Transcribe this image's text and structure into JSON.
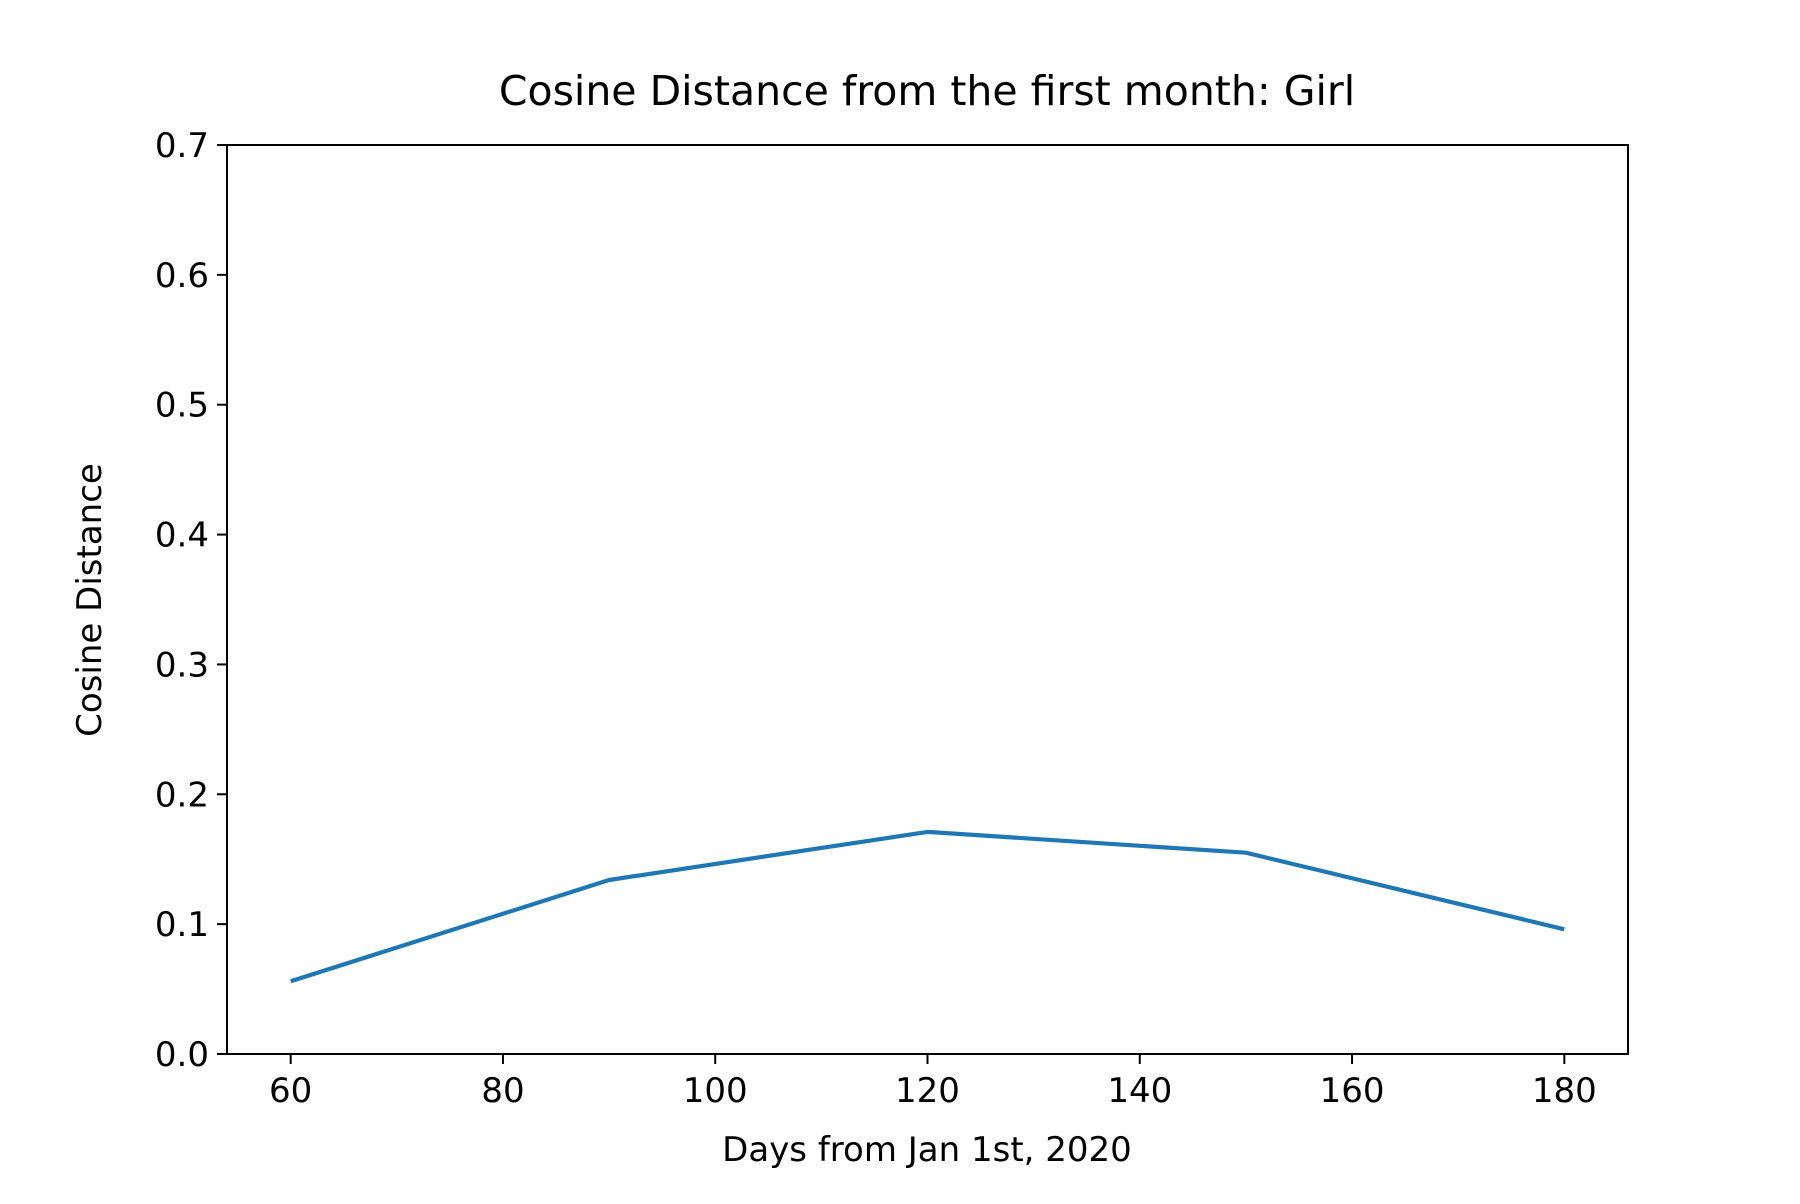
{
  "chart_data": {
    "type": "line",
    "title": "Cosine Distance from the first month: Girl",
    "xlabel": "Days from Jan 1st, 2020",
    "ylabel": "Cosine Distance",
    "xlim": [
      54,
      186
    ],
    "ylim": [
      0.0,
      0.7
    ],
    "x_ticks": [
      60,
      80,
      100,
      120,
      140,
      160,
      180
    ],
    "y_ticks": [
      0.0,
      0.1,
      0.2,
      0.3,
      0.4,
      0.5,
      0.6,
      0.7
    ],
    "x_tick_labels": [
      "60",
      "80",
      "100",
      "120",
      "140",
      "160",
      "180"
    ],
    "y_tick_labels": [
      "0.0",
      "0.1",
      "0.2",
      "0.3",
      "0.4",
      "0.5",
      "0.6",
      "0.7"
    ],
    "grid": false,
    "legend": null,
    "series": [
      {
        "color": "#1f77b4",
        "x": [
          60,
          90,
          120,
          150,
          180
        ],
        "y": [
          0.056,
          0.134,
          0.171,
          0.155,
          0.096
        ]
      }
    ]
  }
}
